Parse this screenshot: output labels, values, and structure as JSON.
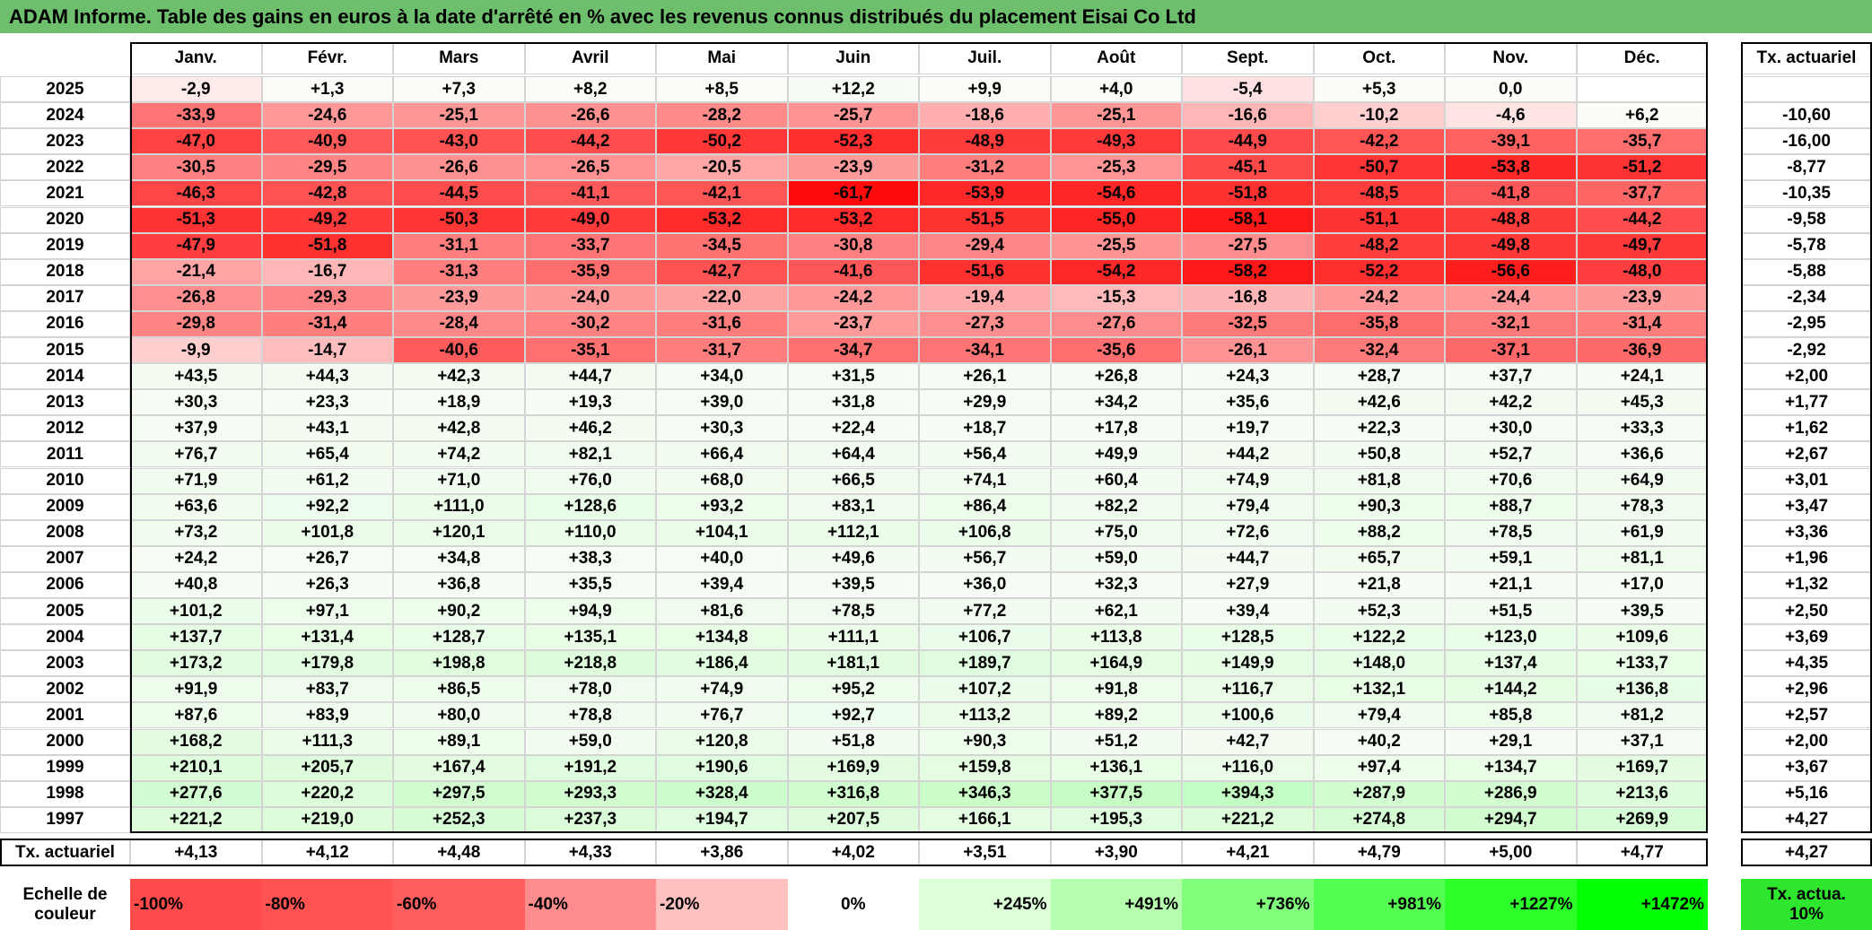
{
  "title": "ADAM Informe. Table des gains en euros à la date d'arrêté en % avec les revenus connus distribués du placement Eisai Co Ltd",
  "table": {
    "columns": [
      "Janv.",
      "Févr.",
      "Mars",
      "Avril",
      "Mai",
      "Juin",
      "Juil.",
      "Août",
      "Sept.",
      "Oct.",
      "Nov.",
      "Déc."
    ],
    "rate_header": "Tx. actuariel",
    "rows": [
      {
        "year": "2025",
        "cells": [
          "-2,9",
          "+1,3",
          "+7,3",
          "+8,2",
          "+8,5",
          "+12,2",
          "+9,9",
          "+4,0",
          "-5,4",
          "+5,3",
          "0,0",
          null
        ],
        "rate": null
      },
      {
        "year": "2024",
        "cells": [
          "-33,9",
          "-24,6",
          "-25,1",
          "-26,6",
          "-28,2",
          "-25,7",
          "-18,6",
          "-25,1",
          "-16,6",
          "-10,2",
          "-4,6",
          "+6,2"
        ],
        "rate": "-10,60"
      },
      {
        "year": "2023",
        "cells": [
          "-47,0",
          "-40,9",
          "-43,0",
          "-44,2",
          "-50,2",
          "-52,3",
          "-48,9",
          "-49,3",
          "-44,9",
          "-42,2",
          "-39,1",
          "-35,7"
        ],
        "rate": "-16,00"
      },
      {
        "year": "2022",
        "cells": [
          "-30,5",
          "-29,5",
          "-26,6",
          "-26,5",
          "-20,5",
          "-23,9",
          "-31,2",
          "-25,3",
          "-45,1",
          "-50,7",
          "-53,8",
          "-51,2"
        ],
        "rate": "-8,77"
      },
      {
        "year": "2021",
        "cells": [
          "-46,3",
          "-42,8",
          "-44,5",
          "-41,1",
          "-42,1",
          "-61,7",
          "-53,9",
          "-54,6",
          "-51,8",
          "-48,5",
          "-41,8",
          "-37,7"
        ],
        "rate": "-10,35"
      },
      {
        "year": "2020",
        "cells": [
          "-51,3",
          "-49,2",
          "-50,3",
          "-49,0",
          "-53,2",
          "-53,2",
          "-51,5",
          "-55,0",
          "-58,1",
          "-51,1",
          "-48,8",
          "-44,2"
        ],
        "rate": "-9,58"
      },
      {
        "year": "2019",
        "cells": [
          "-47,9",
          "-51,8",
          "-31,1",
          "-33,7",
          "-34,5",
          "-30,8",
          "-29,4",
          "-25,5",
          "-27,5",
          "-48,2",
          "-49,8",
          "-49,7"
        ],
        "rate": "-5,78"
      },
      {
        "year": "2018",
        "cells": [
          "-21,4",
          "-16,7",
          "-31,3",
          "-35,9",
          "-42,7",
          "-41,6",
          "-51,6",
          "-54,2",
          "-58,2",
          "-52,2",
          "-56,6",
          "-48,0"
        ],
        "rate": "-5,88"
      },
      {
        "year": "2017",
        "cells": [
          "-26,8",
          "-29,3",
          "-23,9",
          "-24,0",
          "-22,0",
          "-24,2",
          "-19,4",
          "-15,3",
          "-16,8",
          "-24,2",
          "-24,4",
          "-23,9"
        ],
        "rate": "-2,34"
      },
      {
        "year": "2016",
        "cells": [
          "-29,8",
          "-31,4",
          "-28,4",
          "-30,2",
          "-31,6",
          "-23,7",
          "-27,3",
          "-27,6",
          "-32,5",
          "-35,8",
          "-32,1",
          "-31,4"
        ],
        "rate": "-2,95"
      },
      {
        "year": "2015",
        "cells": [
          "-9,9",
          "-14,7",
          "-40,6",
          "-35,1",
          "-31,7",
          "-34,7",
          "-34,1",
          "-35,6",
          "-26,1",
          "-32,4",
          "-37,1",
          "-36,9"
        ],
        "rate": "-2,92"
      },
      {
        "year": "2014",
        "cells": [
          "+43,5",
          "+44,3",
          "+42,3",
          "+44,7",
          "+34,0",
          "+31,5",
          "+26,1",
          "+26,8",
          "+24,3",
          "+28,7",
          "+37,7",
          "+24,1"
        ],
        "rate": "+2,00"
      },
      {
        "year": "2013",
        "cells": [
          "+30,3",
          "+23,3",
          "+18,9",
          "+19,3",
          "+39,0",
          "+31,8",
          "+29,9",
          "+34,2",
          "+35,6",
          "+42,6",
          "+42,2",
          "+45,3"
        ],
        "rate": "+1,77"
      },
      {
        "year": "2012",
        "cells": [
          "+37,9",
          "+43,1",
          "+42,8",
          "+46,2",
          "+30,3",
          "+22,4",
          "+18,7",
          "+17,8",
          "+19,7",
          "+22,3",
          "+30,0",
          "+33,3"
        ],
        "rate": "+1,62"
      },
      {
        "year": "2011",
        "cells": [
          "+76,7",
          "+65,4",
          "+74,2",
          "+82,1",
          "+66,4",
          "+64,4",
          "+56,4",
          "+49,9",
          "+44,2",
          "+50,8",
          "+52,7",
          "+36,6"
        ],
        "rate": "+2,67"
      },
      {
        "year": "2010",
        "cells": [
          "+71,9",
          "+61,2",
          "+71,0",
          "+76,0",
          "+68,0",
          "+66,5",
          "+74,1",
          "+60,4",
          "+74,9",
          "+81,8",
          "+70,6",
          "+64,9"
        ],
        "rate": "+3,01"
      },
      {
        "year": "2009",
        "cells": [
          "+63,6",
          "+92,2",
          "+111,0",
          "+128,6",
          "+93,2",
          "+83,1",
          "+86,4",
          "+82,2",
          "+79,4",
          "+90,3",
          "+88,7",
          "+78,3"
        ],
        "rate": "+3,47"
      },
      {
        "year": "2008",
        "cells": [
          "+73,2",
          "+101,8",
          "+120,1",
          "+110,0",
          "+104,1",
          "+112,1",
          "+106,8",
          "+75,0",
          "+72,6",
          "+88,2",
          "+78,5",
          "+61,9"
        ],
        "rate": "+3,36"
      },
      {
        "year": "2007",
        "cells": [
          "+24,2",
          "+26,7",
          "+34,8",
          "+38,3",
          "+40,0",
          "+49,6",
          "+56,7",
          "+59,0",
          "+44,7",
          "+65,7",
          "+59,1",
          "+81,1"
        ],
        "rate": "+1,96"
      },
      {
        "year": "2006",
        "cells": [
          "+40,8",
          "+26,3",
          "+36,8",
          "+35,5",
          "+39,4",
          "+39,5",
          "+36,0",
          "+32,3",
          "+27,9",
          "+21,8",
          "+21,1",
          "+17,0"
        ],
        "rate": "+1,32"
      },
      {
        "year": "2005",
        "cells": [
          "+101,2",
          "+97,1",
          "+90,2",
          "+94,9",
          "+81,6",
          "+78,5",
          "+77,2",
          "+62,1",
          "+39,4",
          "+52,3",
          "+51,5",
          "+39,5"
        ],
        "rate": "+2,50"
      },
      {
        "year": "2004",
        "cells": [
          "+137,7",
          "+131,4",
          "+128,7",
          "+135,1",
          "+134,8",
          "+111,1",
          "+106,7",
          "+113,8",
          "+128,5",
          "+122,2",
          "+123,0",
          "+109,6"
        ],
        "rate": "+3,69"
      },
      {
        "year": "2003",
        "cells": [
          "+173,2",
          "+179,8",
          "+198,8",
          "+218,8",
          "+186,4",
          "+181,1",
          "+189,7",
          "+164,9",
          "+149,9",
          "+148,0",
          "+137,4",
          "+133,7"
        ],
        "rate": "+4,35"
      },
      {
        "year": "2002",
        "cells": [
          "+91,9",
          "+83,7",
          "+86,5",
          "+78,0",
          "+74,9",
          "+95,2",
          "+107,2",
          "+91,8",
          "+116,7",
          "+132,1",
          "+144,2",
          "+136,8"
        ],
        "rate": "+2,96"
      },
      {
        "year": "2001",
        "cells": [
          "+87,6",
          "+83,9",
          "+80,0",
          "+78,8",
          "+76,7",
          "+92,7",
          "+113,2",
          "+89,2",
          "+100,6",
          "+79,4",
          "+85,8",
          "+81,2"
        ],
        "rate": "+2,57"
      },
      {
        "year": "2000",
        "cells": [
          "+168,2",
          "+111,3",
          "+89,1",
          "+59,0",
          "+120,8",
          "+51,8",
          "+90,3",
          "+51,2",
          "+42,7",
          "+40,2",
          "+29,1",
          "+37,1"
        ],
        "rate": "+2,00"
      },
      {
        "year": "1999",
        "cells": [
          "+210,1",
          "+205,7",
          "+167,4",
          "+191,2",
          "+190,6",
          "+169,9",
          "+159,8",
          "+136,1",
          "+116,0",
          "+97,4",
          "+134,7",
          "+169,7"
        ],
        "rate": "+3,67"
      },
      {
        "year": "1998",
        "cells": [
          "+277,6",
          "+220,2",
          "+297,5",
          "+293,3",
          "+328,4",
          "+316,8",
          "+346,3",
          "+377,5",
          "+394,3",
          "+287,9",
          "+286,9",
          "+213,6"
        ],
        "rate": "+5,16"
      },
      {
        "year": "1997",
        "cells": [
          "+221,2",
          "+219,0",
          "+252,3",
          "+237,3",
          "+194,7",
          "+207,5",
          "+166,1",
          "+195,3",
          "+221,2",
          "+274,8",
          "+294,7",
          "+269,9"
        ],
        "rate": "+4,27"
      }
    ],
    "footer": {
      "label": "Tx. actuariel",
      "cells": [
        "+4,13",
        "+4,12",
        "+4,48",
        "+4,33",
        "+3,86",
        "+4,02",
        "+3,51",
        "+3,90",
        "+4,21",
        "+4,79",
        "+5,00",
        "+4,77"
      ],
      "rate": "+4,27"
    }
  },
  "scale": {
    "label": "Echelle de couleur",
    "steps": [
      "-100%",
      "-80%",
      "-60%",
      "-40%",
      "-20%",
      "0%",
      "+245%",
      "+491%",
      "+736%",
      "+981%",
      "+1227%",
      "+1472%"
    ],
    "rate_label": "Tx. actua. 10%"
  }
}
